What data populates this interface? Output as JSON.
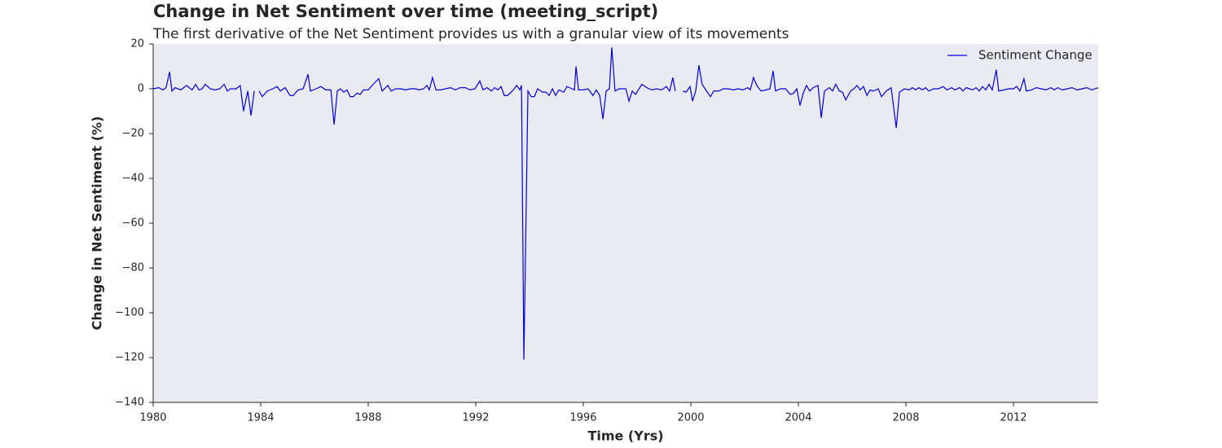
{
  "chart_data": {
    "type": "line",
    "title": "Change in Net Sentiment over time (meeting_script)",
    "subtitle": "The first derivative of the Net Sentiment provides us with a granular view of its movements",
    "x_label": "Time (Yrs)",
    "y_label": "Change in Net Sentiment (%)",
    "xlim": [
      1980,
      2015.15
    ],
    "xticks": [
      1980,
      1984,
      1988,
      1992,
      1996,
      2000,
      2004,
      2008,
      2012
    ],
    "ylim": [
      -140,
      20
    ],
    "yticks": [
      {
        "value": -140,
        "label": "−140"
      },
      {
        "value": -120,
        "label": "−120"
      },
      {
        "value": -100,
        "label": "−100"
      },
      {
        "value": -80,
        "label": "−80"
      },
      {
        "value": -60,
        "label": "−60"
      },
      {
        "value": -40,
        "label": "−40"
      },
      {
        "value": -20,
        "label": "−20"
      },
      0,
      20
    ],
    "grid": false,
    "legend": "upper right",
    "x": [
      1980.0,
      1980.21,
      1980.36,
      1980.48,
      1980.61,
      1980.7,
      1980.82,
      1981.03,
      1981.24,
      1981.45,
      1981.58,
      1981.7,
      1981.82,
      1981.94,
      1982.12,
      1982.3,
      1982.48,
      1982.64,
      1982.76,
      1982.88,
      1983.09,
      1983.24,
      1983.36,
      1983.52,
      1983.64,
      1983.76,
      1983.85,
      1983.94,
      1984.06,
      1984.24,
      1984.45,
      1984.61,
      1984.73,
      1984.91,
      1985.09,
      1985.21,
      1985.39,
      1985.58,
      1985.76,
      1985.85,
      1986.06,
      1986.24,
      1986.42,
      1986.61,
      1986.73,
      1986.85,
      1986.97,
      1987.09,
      1987.21,
      1987.33,
      1987.45,
      1987.58,
      1987.7,
      1987.82,
      1988.0,
      1988.18,
      1988.39,
      1988.52,
      1988.73,
      1988.85,
      1989.03,
      1989.21,
      1989.39,
      1989.58,
      1989.76,
      1989.88,
      1990.06,
      1990.18,
      1990.27,
      1990.39,
      1990.52,
      1990.7,
      1990.88,
      1991.06,
      1991.24,
      1991.42,
      1991.61,
      1991.79,
      1991.97,
      1992.15,
      1992.27,
      1992.42,
      1992.58,
      1992.7,
      1992.82,
      1992.94,
      1993.06,
      1993.18,
      1993.36,
      1993.52,
      1993.64,
      1993.7,
      1993.79,
      1993.94,
      1994.06,
      1994.18,
      1994.3,
      1994.48,
      1994.61,
      1994.73,
      1994.85,
      1994.97,
      1995.09,
      1995.27,
      1995.39,
      1995.58,
      1995.67,
      1995.73,
      1995.82,
      1996.0,
      1996.18,
      1996.36,
      1996.48,
      1996.61,
      1996.73,
      1996.85,
      1996.97,
      1997.06,
      1997.18,
      1997.33,
      1997.58,
      1997.7,
      1997.82,
      1997.94,
      1998.18,
      1998.36,
      1998.55,
      1998.73,
      1998.91,
      1999.09,
      1999.21,
      1999.33,
      1999.42,
      1999.55,
      1999.7,
      1999.82,
      1999.97,
      2000.06,
      2000.18,
      2000.3,
      2000.42,
      2000.61,
      2000.73,
      2000.85,
      2001.03,
      2001.21,
      2001.39,
      2001.58,
      2001.76,
      2001.94,
      2002.12,
      2002.21,
      2002.33,
      2002.45,
      2002.61,
      2002.79,
      2002.94,
      2003.06,
      2003.15,
      2003.33,
      2003.52,
      2003.7,
      2003.82,
      2003.94,
      2004.06,
      2004.18,
      2004.3,
      2004.42,
      2004.55,
      2004.73,
      2004.85,
      2004.97,
      2005.15,
      2005.27,
      2005.39,
      2005.52,
      2005.64,
      2005.76,
      2005.94,
      2006.06,
      2006.18,
      2006.3,
      2006.42,
      2006.55,
      2006.67,
      2006.79,
      2006.97,
      2007.09,
      2007.27,
      2007.45,
      2007.64,
      2007.76,
      2007.94,
      2008.12,
      2008.24,
      2008.36,
      2008.48,
      2008.61,
      2008.73,
      2008.85,
      2009.03,
      2009.21,
      2009.39,
      2009.52,
      2009.7,
      2009.82,
      2010.0,
      2010.12,
      2010.24,
      2010.36,
      2010.48,
      2010.61,
      2010.73,
      2010.85,
      2010.97,
      2011.09,
      2011.21,
      2011.36,
      2011.45,
      2011.64,
      2011.82,
      2012.0,
      2012.12,
      2012.24,
      2012.39,
      2012.48,
      2012.67,
      2012.85,
      2013.03,
      2013.21,
      2013.39,
      2013.52,
      2013.64,
      2013.82,
      2014.0,
      2014.18,
      2014.36,
      2014.55,
      2014.73,
      2014.91,
      2015.15
    ],
    "series": [
      {
        "name": "Sentiment Change",
        "color": "#0000d8",
        "values": [
          0,
          0.5,
          -0.5,
          0.5,
          7.5,
          -1,
          0.5,
          -0.5,
          1.5,
          -0.5,
          2,
          -0.5,
          0,
          2,
          0,
          -0.5,
          0,
          2,
          -1,
          0,
          0,
          1.5,
          -10,
          -1,
          -12,
          -1,
          null,
          -1,
          -3.5,
          -1,
          0,
          1,
          -1,
          0.5,
          -3,
          -3,
          -0.5,
          0,
          6.5,
          -1,
          0,
          1,
          -0.5,
          -0.5,
          -16,
          -1,
          0,
          -1.5,
          -0.5,
          -3.5,
          -3.5,
          -2,
          -2.5,
          -0.5,
          -0.5,
          2,
          4.5,
          -1,
          1.5,
          -1,
          0,
          0,
          -0.5,
          0,
          0,
          -0.5,
          0,
          1.5,
          -0.5,
          5,
          -0.5,
          -0.5,
          0,
          0.5,
          -0.5,
          0.5,
          0.5,
          -0.5,
          0,
          3.5,
          -0.5,
          0.5,
          -1,
          0.5,
          -0.5,
          1,
          -3,
          -3,
          -1,
          1.5,
          -0.5,
          1.5,
          -121,
          -1,
          -3.5,
          -3.5,
          0,
          -1.5,
          -1.5,
          -3,
          0,
          -3,
          -0.5,
          -1.5,
          1,
          0,
          -0.5,
          10,
          -0.5,
          -0.5,
          0,
          -3,
          -0.5,
          -3,
          -13.5,
          -1,
          0,
          18.5,
          -1,
          0,
          0,
          -5.5,
          -1,
          -2.5,
          2,
          0.5,
          -0.5,
          0,
          -0.5,
          1,
          -1,
          5,
          -1,
          null,
          -1,
          -1.5,
          1,
          -5.5,
          -1,
          10.5,
          2,
          -1.5,
          -3.5,
          -1,
          -1,
          0,
          0,
          -0.5,
          0,
          -0.5,
          0.5,
          -0.5,
          5,
          1.5,
          -1,
          -0.5,
          0,
          8,
          -1,
          0,
          0,
          -2.5,
          -2,
          0,
          -7.5,
          -2,
          1.5,
          -1,
          0.5,
          1.5,
          -13,
          -1,
          0.5,
          -1,
          2,
          -1,
          -1.5,
          -5,
          -1,
          0,
          1.5,
          -0.5,
          1,
          -3,
          -0.5,
          -1,
          0,
          -3.5,
          -1,
          0.5,
          -17.5,
          -1.5,
          0,
          -0.5,
          0.5,
          -0.5,
          0.5,
          -0.5,
          0.5,
          -1,
          0,
          0,
          1,
          -0.5,
          0.5,
          -0.5,
          0.5,
          -1,
          0.5,
          0,
          -0.5,
          0.5,
          -1,
          1,
          -0.5,
          2,
          -0.5,
          8.5,
          -1,
          -0.5,
          0,
          0,
          1,
          -1,
          4.5,
          -1,
          -0.5,
          0.5,
          0,
          -0.5,
          0.5,
          -0.5,
          0.5,
          -0.5,
          0,
          0.5,
          -0.5,
          0,
          0.5,
          -0.5,
          0.5
        ]
      }
    ]
  }
}
